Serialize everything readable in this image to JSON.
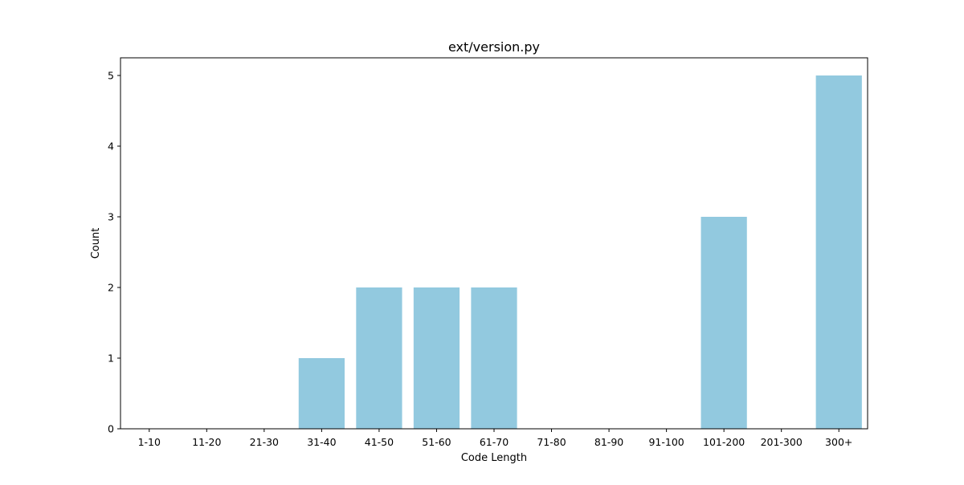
{
  "chart_data": {
    "type": "bar",
    "title": "ext/version.py",
    "xlabel": "Code Length",
    "ylabel": "Count",
    "categories": [
      "1-10",
      "11-20",
      "21-30",
      "31-40",
      "41-50",
      "51-60",
      "61-70",
      "71-80",
      "81-90",
      "91-100",
      "101-200",
      "201-300",
      "300+"
    ],
    "values": [
      0,
      0,
      0,
      1,
      2,
      2,
      2,
      0,
      0,
      0,
      3,
      0,
      5
    ],
    "ylim": [
      0,
      5.25
    ],
    "yticks": [
      0,
      1,
      2,
      3,
      4,
      5
    ],
    "grid": false,
    "legend": false,
    "bar_color": "#92c9df",
    "axis_color": "#000000"
  }
}
